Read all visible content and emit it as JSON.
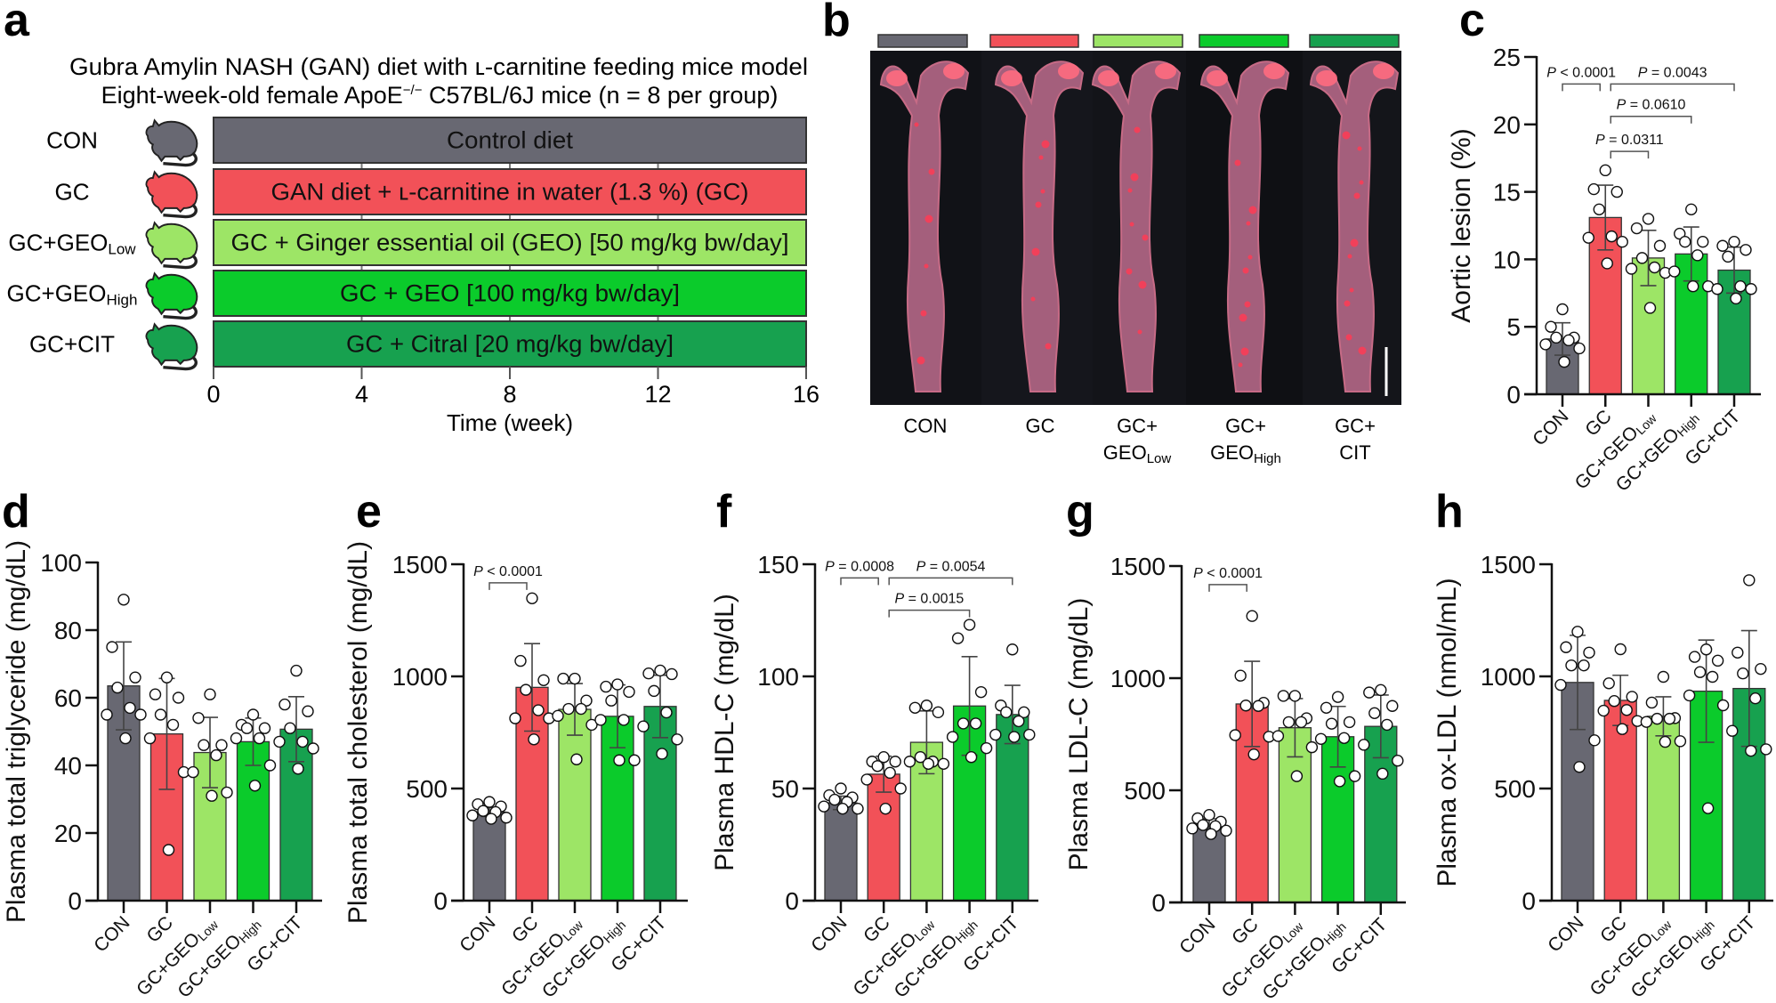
{
  "panel_labels": {
    "a": "a",
    "b": "b",
    "c": "c",
    "d": "d",
    "e": "e",
    "f": "f",
    "g": "g",
    "h": "h"
  },
  "groups": [
    {
      "id": "CON",
      "color": "#686872"
    },
    {
      "id": "GC",
      "color": "#f25158"
    },
    {
      "id": "GC+GEO Low",
      "color": "#9de566"
    },
    {
      "id": "GC+GEO High",
      "color": "#0bcb2b"
    },
    {
      "id": "GC+CIT",
      "color": "#17a14f"
    }
  ],
  "panel_a": {
    "title_line1": "Gubra Amylin NASH (GAN) diet with ʟ-carnitine feeding mice model",
    "title_line2_pre": "Eight-week-old female ApoE",
    "title_line2_sup": "−/−",
    "title_line2_post": " C57BL/6J mice (n = 8 per group)",
    "rows": [
      {
        "label": "CON",
        "sub": "",
        "text": "Control diet",
        "color": "#686872",
        "icon": "mouse-icon"
      },
      {
        "label": "GC",
        "sub": "",
        "text": "GAN diet + ʟ-carnitine in water (1.3 %) (GC)",
        "color": "#f25158",
        "icon": "mouse-icon"
      },
      {
        "label": "GC+GEO",
        "sub": "Low",
        "text": "GC + Ginger essential oil (GEO) [50 mg/kg bw/day]",
        "color": "#9de566",
        "icon": "mouse-icon"
      },
      {
        "label": "GC+GEO",
        "sub": "High",
        "text": "GC + GEO [100 mg/kg bw/day]",
        "color": "#0bcb2b",
        "icon": "mouse-icon"
      },
      {
        "label": "GC+CIT",
        "sub": "",
        "text": "GC + Citral [20 mg/kg bw/day]",
        "color": "#17a14f",
        "icon": "mouse-icon"
      }
    ],
    "axis": {
      "ticks": [
        "0",
        "4",
        "8",
        "12",
        "16"
      ],
      "range_weeks": [
        0,
        16
      ],
      "title": "Time (week)"
    }
  },
  "panel_b": {
    "image": "photograph of en face aortas stained red, one per group, on black background, with white scale bar",
    "columns": [
      {
        "line1": "CON",
        "line2": "",
        "sub": "",
        "color": "#686872"
      },
      {
        "line1": "GC",
        "line2": "",
        "sub": "",
        "color": "#f25158"
      },
      {
        "line1": "GC+",
        "line2": "GEO",
        "sub": "Low",
        "color": "#9de566"
      },
      {
        "line1": "GC+",
        "line2": "GEO",
        "sub": "High",
        "color": "#0bcb2b"
      },
      {
        "line1": "GC+",
        "line2": "CIT",
        "sub": "",
        "color": "#17a14f"
      }
    ]
  },
  "chart_data": [
    {
      "panel": "c",
      "type": "bar",
      "ylabel": "Aortic lesion (%)",
      "ylim": [
        0,
        25
      ],
      "yticks": [
        "0",
        "5",
        "10",
        "15",
        "20",
        "25"
      ],
      "categories": [
        {
          "text": "CON",
          "sub": ""
        },
        {
          "text": "GC",
          "sub": ""
        },
        {
          "text": "GC+GEO",
          "sub": "Low"
        },
        {
          "text": "GC+GEO",
          "sub": "High"
        },
        {
          "text": "GC+CIT",
          "sub": ""
        }
      ],
      "series": [
        {
          "mean": 4.1,
          "sd": 1.2,
          "points": [
            6.3,
            5.0,
            4.2,
            4.2,
            4.0,
            3.7,
            3.4,
            2.4
          ]
        },
        {
          "mean": 13.1,
          "sd": 2.4,
          "points": [
            16.6,
            15.2,
            15.0,
            13.7,
            11.7,
            11.6,
            11.3,
            9.7
          ]
        },
        {
          "mean": 10.1,
          "sd": 2.05,
          "points": [
            13.0,
            12.3,
            11.0,
            10.1,
            9.4,
            9.3,
            9.0,
            6.4
          ]
        },
        {
          "mean": 10.4,
          "sd": 2.0,
          "points": [
            13.7,
            11.9,
            11.3,
            11.3,
            10.3,
            9.1,
            8.0,
            8.0
          ]
        },
        {
          "mean": 9.2,
          "sd": 1.7,
          "points": [
            11.3,
            11.0,
            10.7,
            10.2,
            8.0,
            7.8,
            7.8,
            7.1
          ]
        }
      ],
      "brackets": [
        {
          "from": 0,
          "to": 1,
          "at": 23.0,
          "p": "P",
          "value": " < 0.0001"
        },
        {
          "from": 1,
          "to": 4,
          "at": 23.0,
          "p": "P",
          "value": " = 0.0043"
        },
        {
          "from": 1,
          "to": 3,
          "at": 20.6,
          "p": "P",
          "value": " = 0.0610"
        },
        {
          "from": 1,
          "to": 2,
          "at": 18.0,
          "p": "P",
          "value": " = 0.0311"
        }
      ]
    },
    {
      "panel": "d",
      "type": "bar",
      "ylabel": "Plasma total triglyceride (mg/dL)",
      "ylim": [
        0,
        100
      ],
      "yticks": [
        "0",
        "20",
        "40",
        "60",
        "80",
        "100"
      ],
      "categories": [
        {
          "text": "CON",
          "sub": ""
        },
        {
          "text": "GC",
          "sub": ""
        },
        {
          "text": "GC+GEO",
          "sub": "Low"
        },
        {
          "text": "GC+GEO",
          "sub": "High"
        },
        {
          "text": "GC+CIT",
          "sub": ""
        }
      ],
      "series": [
        {
          "mean": 63.5,
          "sd": 13.0,
          "points": [
            89,
            75,
            66,
            63,
            57,
            55,
            55,
            48
          ]
        },
        {
          "mean": 49.3,
          "sd": 16.4,
          "points": [
            66,
            61,
            60,
            55,
            52,
            48,
            38,
            15
          ]
        },
        {
          "mean": 43.8,
          "sd": 10.4,
          "points": [
            61,
            54,
            46,
            46,
            43,
            38,
            32,
            31
          ]
        },
        {
          "mean": 47.0,
          "sd": 7.0,
          "points": [
            55,
            52,
            51,
            51,
            48,
            48,
            40,
            34
          ]
        },
        {
          "mean": 50.7,
          "sd": 9.6,
          "points": [
            68,
            58,
            56,
            51,
            47,
            47,
            45,
            39
          ]
        }
      ],
      "brackets": []
    },
    {
      "panel": "e",
      "type": "bar",
      "ylabel": "Plasma total cholesterol (mg/dL)",
      "ylim": [
        0,
        1500
      ],
      "yticks": [
        "0",
        "500",
        "1000",
        "1500"
      ],
      "categories": [
        {
          "text": "CON",
          "sub": ""
        },
        {
          "text": "GC",
          "sub": ""
        },
        {
          "text": "GC+GEO",
          "sub": "Low"
        },
        {
          "text": "GC+GEO",
          "sub": "High"
        },
        {
          "text": "GC+CIT",
          "sub": ""
        }
      ],
      "series": [
        {
          "mean": 395,
          "sd": 20,
          "points": [
            440,
            430,
            420,
            400,
            395,
            380,
            370,
            365
          ]
        },
        {
          "mean": 951,
          "sd": 195,
          "points": [
            1348,
            1069,
            983,
            940,
            849,
            813,
            813,
            719
          ]
        },
        {
          "mean": 853,
          "sd": 115,
          "points": [
            990,
            990,
            892,
            855,
            855,
            824,
            784,
            630
          ]
        },
        {
          "mean": 822,
          "sd": 140,
          "points": [
            964,
            954,
            931,
            892,
            806,
            806,
            626,
            626
          ]
        },
        {
          "mean": 866,
          "sd": 139,
          "points": [
            1026,
            1013,
            1010,
            935,
            839,
            777,
            719,
            655
          ]
        }
      ],
      "brackets": [
        {
          "from": 0,
          "to": 1,
          "at": 1417,
          "p": "P",
          "value": " < 0.0001"
        }
      ]
    },
    {
      "panel": "f",
      "type": "bar",
      "ylabel": "Plasma HDL-C (mg/dL)",
      "ylim": [
        0,
        150
      ],
      "yticks": [
        "0",
        "50",
        "100",
        "150"
      ],
      "categories": [
        {
          "text": "CON",
          "sub": ""
        },
        {
          "text": "GC",
          "sub": ""
        },
        {
          "text": "GC+GEO",
          "sub": "Low"
        },
        {
          "text": "GC+GEO",
          "sub": "High"
        },
        {
          "text": "GC+CIT",
          "sub": ""
        }
      ],
      "series": [
        {
          "mean": 43.6,
          "sd": 3.0,
          "points": [
            50,
            47,
            46,
            45,
            44,
            42,
            41,
            41
          ]
        },
        {
          "mean": 56.4,
          "sd": 8.0,
          "points": [
            64,
            62,
            62,
            60,
            57,
            54,
            50,
            41
          ]
        },
        {
          "mean": 70.6,
          "sd": 14.0,
          "points": [
            87,
            86,
            84,
            64,
            62,
            62,
            61,
            61
          ]
        },
        {
          "mean": 86.8,
          "sd": 22.0,
          "points": [
            123,
            117,
            93,
            79,
            79,
            73,
            68,
            64
          ]
        },
        {
          "mean": 83.0,
          "sd": 13.0,
          "points": [
            112,
            87,
            84,
            84,
            80,
            74,
            74,
            73
          ]
        }
      ],
      "brackets": [
        {
          "from": 0,
          "to": 1,
          "at": 143.9,
          "p": "P",
          "value": " = 0.0008"
        },
        {
          "from": 1,
          "to": 4,
          "at": 143.9,
          "p": "P",
          "value": " = 0.0054"
        },
        {
          "from": 1,
          "to": 3,
          "at": 129.5,
          "p": "P",
          "value": " = 0.0015"
        }
      ]
    },
    {
      "panel": "g",
      "type": "bar",
      "ylabel": "Plasma LDL-C (mg/dL)",
      "ylim": [
        0,
        1500
      ],
      "yticks": [
        "0",
        "500",
        "1000",
        "1500"
      ],
      "categories": [
        {
          "text": "CON",
          "sub": ""
        },
        {
          "text": "GC",
          "sub": ""
        },
        {
          "text": "GC+GEO",
          "sub": "Low"
        },
        {
          "text": "GC+GEO",
          "sub": "High"
        },
        {
          "text": "GC+CIT",
          "sub": ""
        }
      ],
      "series": [
        {
          "mean": 348,
          "sd": 25,
          "points": [
            390,
            375,
            360,
            345,
            340,
            330,
            320,
            305
          ]
        },
        {
          "mean": 885,
          "sd": 190,
          "points": [
            1277,
            1011,
            890,
            878,
            876,
            746,
            739,
            660
          ]
        },
        {
          "mean": 779,
          "sd": 130,
          "points": [
            921,
            921,
            821,
            804,
            804,
            742,
            692,
            563
          ]
        },
        {
          "mean": 739,
          "sd": 135,
          "points": [
            916,
            868,
            804,
            797,
            733,
            729,
            563,
            540
          ]
        },
        {
          "mean": 785,
          "sd": 140,
          "points": [
            947,
            936,
            876,
            844,
            792,
            703,
            632,
            574
          ]
        }
      ],
      "brackets": [
        {
          "from": 0,
          "to": 1,
          "at": 1417,
          "p": "P",
          "value": " < 0.0001"
        }
      ]
    },
    {
      "panel": "h",
      "type": "bar",
      "ylabel": "Plasma ox-LDL (nmol/mL)",
      "ylim": [
        0,
        1500
      ],
      "yticks": [
        "0",
        "500",
        "1000",
        "1500"
      ],
      "categories": [
        {
          "text": "CON",
          "sub": ""
        },
        {
          "text": "GC",
          "sub": ""
        },
        {
          "text": "GC+GEO",
          "sub": "Low"
        },
        {
          "text": "GC+GEO",
          "sub": "High"
        },
        {
          "text": "GC+CIT",
          "sub": ""
        }
      ],
      "series": [
        {
          "mean": 973,
          "sd": 210,
          "points": [
            1199,
            1130,
            1106,
            1049,
            1049,
            962,
            715,
            596
          ]
        },
        {
          "mean": 893,
          "sd": 112,
          "points": [
            1121,
            969,
            909,
            890,
            850,
            847,
            801,
            765
          ]
        },
        {
          "mean": 822,
          "sd": 87,
          "points": [
            998,
            883,
            814,
            811,
            811,
            797,
            711,
            708
          ]
        },
        {
          "mean": 934,
          "sd": 228,
          "points": [
            1120,
            1087,
            1070,
            1019,
            998,
            915,
            871,
            412
          ]
        },
        {
          "mean": 946,
          "sd": 258,
          "points": [
            1429,
            1106,
            1033,
            1013,
            902,
            757,
            675,
            668
          ]
        }
      ],
      "brackets": []
    }
  ]
}
